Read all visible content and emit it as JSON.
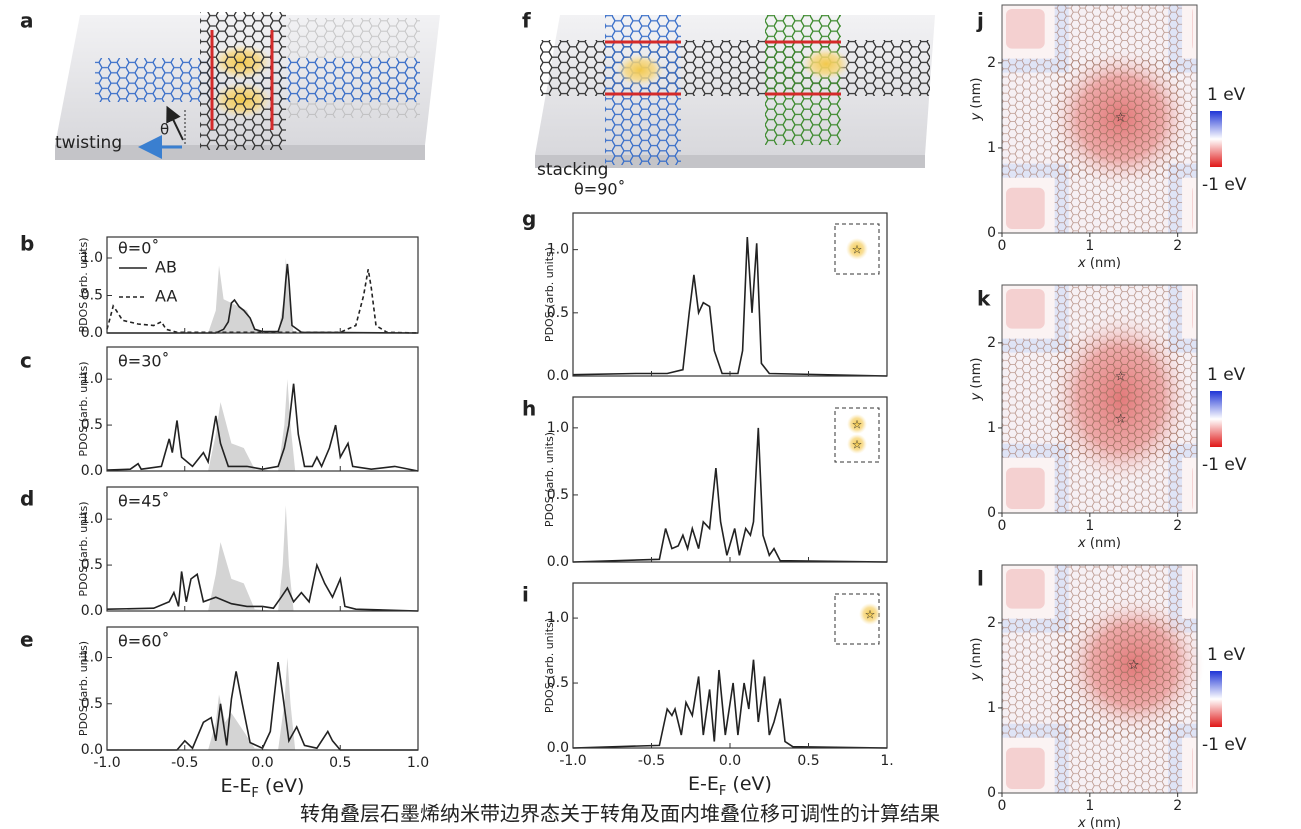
{
  "schematics": {
    "a": {
      "panel": "a",
      "label": "twisting",
      "angle": "θ"
    },
    "f": {
      "panel": "f",
      "label": "stacking"
    }
  },
  "caption": "转角叠层石墨烯纳米带边界态关于转角及面内堆叠位移可调性的计算结果",
  "chart_data": [
    {
      "type": "line",
      "panel": "b",
      "theta": "θ=0˚",
      "ylabel": "PDOS (arb. units)",
      "legend": true,
      "xlim": [
        -1,
        1
      ],
      "ylim": [
        0,
        1.28
      ],
      "xticks": [
        -1,
        -0.5,
        0,
        0.5,
        1
      ],
      "yticks": [
        {
          "value": 0,
          "label": "0.0"
        },
        {
          "value": 0.5,
          "label": "0.5"
        },
        {
          "value": 1,
          "label": "1.0"
        }
      ],
      "series": [
        {
          "color": "#d4d4d4",
          "fill": true,
          "style": "solid",
          "x": [
            -1,
            -0.35,
            -0.3,
            -0.28,
            -0.25,
            -0.2,
            -0.1,
            -0.05,
            0.1,
            0.14,
            0.15,
            0.17,
            0.2,
            1
          ],
          "values": [
            0,
            0,
            0.3,
            0.9,
            0.45,
            0.4,
            0.3,
            0.05,
            0,
            0.5,
            1.0,
            0.5,
            0,
            0
          ]
        },
        {
          "name": "AB",
          "color": "#222222",
          "style": "solid",
          "x": [
            -1,
            -0.3,
            -0.25,
            -0.22,
            -0.2,
            -0.18,
            -0.15,
            -0.12,
            -0.08,
            -0.05,
            0,
            0.1,
            0.13,
            0.15,
            0.16,
            0.17,
            0.19,
            0.25,
            1
          ],
          "values": [
            0,
            0,
            0.05,
            0.15,
            0.4,
            0.44,
            0.35,
            0.3,
            0.2,
            0.05,
            0.02,
            0.02,
            0.2,
            0.7,
            0.92,
            0.7,
            0.1,
            0.01,
            0
          ]
        },
        {
          "name": "AA",
          "color": "#222222",
          "style": "dash",
          "x": [
            -1,
            -0.98,
            -0.96,
            -0.94,
            -0.9,
            -0.8,
            -0.7,
            -0.65,
            -0.62,
            -0.55,
            0.5,
            0.6,
            0.65,
            0.68,
            0.7,
            0.73,
            0.8,
            1
          ],
          "values": [
            0.05,
            0.2,
            0.36,
            0.3,
            0.17,
            0.12,
            0.1,
            0.15,
            0.05,
            0.01,
            0.01,
            0.1,
            0.5,
            0.85,
            0.6,
            0.1,
            0.01,
            0
          ]
        }
      ]
    },
    {
      "type": "line",
      "panel": "c",
      "theta": "θ=30˚",
      "ylabel": "PDOS (arb. units)",
      "xlim": [
        -1,
        1
      ],
      "ylim": [
        0,
        1.35
      ],
      "xticks": [
        -1,
        -0.5,
        0,
        0.5,
        1
      ],
      "yticks": [
        {
          "value": 0,
          "label": "0.0"
        },
        {
          "value": 0.5,
          "label": "0.5"
        },
        {
          "value": 1,
          "label": "1.0"
        }
      ],
      "series": [
        {
          "color": "#d4d4d4",
          "fill": true,
          "style": "solid",
          "x": [
            -1,
            -0.35,
            -0.3,
            -0.27,
            -0.2,
            -0.12,
            -0.05,
            0.1,
            0.14,
            0.16,
            0.18,
            0.21,
            1
          ],
          "values": [
            0,
            0,
            0.4,
            0.75,
            0.3,
            0.25,
            0.02,
            0,
            0.5,
            1.0,
            0.5,
            0,
            0
          ]
        },
        {
          "color": "#222222",
          "style": "solid",
          "x": [
            -1,
            -0.85,
            -0.8,
            -0.78,
            -0.65,
            -0.6,
            -0.58,
            -0.55,
            -0.52,
            -0.45,
            -0.38,
            -0.35,
            -0.3,
            -0.27,
            -0.22,
            -0.1,
            0,
            0.1,
            0.14,
            0.17,
            0.2,
            0.23,
            0.27,
            0.32,
            0.35,
            0.38,
            0.43,
            0.47,
            0.5,
            0.55,
            0.58,
            0.7,
            0.85,
            1
          ],
          "values": [
            0.01,
            0.02,
            0.08,
            0.02,
            0.05,
            0.35,
            0.2,
            0.55,
            0.15,
            0.05,
            0.2,
            0.1,
            0.6,
            0.3,
            0.05,
            0.05,
            0.02,
            0.05,
            0.25,
            0.5,
            0.95,
            0.4,
            0.05,
            0.05,
            0.15,
            0.05,
            0.25,
            0.5,
            0.15,
            0.3,
            0.05,
            0.02,
            0.05,
            0
          ]
        }
      ]
    },
    {
      "type": "line",
      "panel": "d",
      "theta": "θ=45˚",
      "ylabel": "PDOS (arb. units)",
      "xlim": [
        -1,
        1
      ],
      "ylim": [
        0,
        1.35
      ],
      "xticks": [
        -1,
        -0.5,
        0,
        0.5,
        1
      ],
      "yticks": [
        {
          "value": 0,
          "label": "0.0"
        },
        {
          "value": 0.5,
          "label": "0.5"
        },
        {
          "value": 1,
          "label": "1.0"
        }
      ],
      "series": [
        {
          "color": "#d4d4d4",
          "fill": true,
          "style": "solid",
          "x": [
            -1,
            -0.35,
            -0.3,
            -0.27,
            -0.2,
            -0.12,
            -0.05,
            0.1,
            0.13,
            0.15,
            0.17,
            0.2,
            1
          ],
          "values": [
            0,
            0,
            0.4,
            0.75,
            0.35,
            0.3,
            0.02,
            0,
            0.5,
            1.15,
            0.5,
            0,
            0
          ]
        },
        {
          "color": "#222222",
          "style": "solid",
          "x": [
            -1,
            -0.7,
            -0.6,
            -0.57,
            -0.54,
            -0.52,
            -0.49,
            -0.46,
            -0.42,
            -0.38,
            -0.3,
            -0.2,
            -0.1,
            0,
            0.07,
            0.12,
            0.16,
            0.2,
            0.25,
            0.3,
            0.35,
            0.4,
            0.45,
            0.5,
            0.53,
            0.6,
            1
          ],
          "values": [
            0.02,
            0.03,
            0.1,
            0.2,
            0.05,
            0.43,
            0.1,
            0.35,
            0.4,
            0.1,
            0.15,
            0.08,
            0.05,
            0.05,
            0.03,
            0.15,
            0.25,
            0.1,
            0.2,
            0.1,
            0.5,
            0.3,
            0.15,
            0.35,
            0.05,
            0.02,
            0
          ]
        }
      ]
    },
    {
      "type": "line",
      "panel": "e",
      "theta": "θ=60˚",
      "ylabel": "PDOS (arb. units)",
      "xlabel": {
        "main": "E-E",
        "sub": "F",
        "unit": " (eV)"
      },
      "xlim": [
        -1,
        1
      ],
      "ylim": [
        0,
        1.33
      ],
      "xticks": [
        {
          "value": -1,
          "label": "-1.0"
        },
        {
          "value": -0.5,
          "label": "-0.5"
        },
        {
          "value": 0,
          "label": "0.0"
        },
        {
          "value": 0.5,
          "label": "0.5"
        },
        {
          "value": 1,
          "label": "1.0"
        }
      ],
      "yticks": [
        {
          "value": 0,
          "label": "0.0"
        },
        {
          "value": 0.5,
          "label": "0.5"
        },
        {
          "value": 1,
          "label": "1.0"
        }
      ],
      "series": [
        {
          "color": "#d4d4d4",
          "fill": true,
          "style": "solid",
          "x": [
            -1,
            -0.35,
            -0.3,
            -0.28,
            -0.24,
            -0.2,
            -0.12,
            -0.05,
            0.1,
            0.14,
            0.16,
            0.18,
            0.21,
            1
          ],
          "values": [
            0,
            0,
            0.3,
            0.6,
            0.3,
            0.4,
            0.2,
            0.02,
            0,
            0.5,
            1.0,
            0.5,
            0,
            0
          ]
        },
        {
          "color": "#222222",
          "style": "solid",
          "x": [
            -1,
            -0.55,
            -0.5,
            -0.45,
            -0.38,
            -0.33,
            -0.3,
            -0.27,
            -0.23,
            -0.2,
            -0.17,
            -0.13,
            -0.08,
            0,
            0.05,
            0.1,
            0.13,
            0.17,
            0.22,
            0.27,
            0.35,
            0.42,
            0.45,
            0.5,
            1
          ],
          "values": [
            0,
            0,
            0.1,
            0.02,
            0.3,
            0.35,
            0.1,
            0.5,
            0.05,
            0.55,
            0.85,
            0.5,
            0.08,
            0.02,
            0.2,
            0.95,
            0.6,
            0.1,
            0.25,
            0.05,
            0.02,
            0.2,
            0.1,
            0,
            0
          ]
        }
      ]
    },
    {
      "type": "line",
      "panel": "g",
      "theta": "θ=90˚",
      "ylabel": "PDOS (arb. units)",
      "xlim": [
        -1,
        1
      ],
      "ylim": [
        0,
        1.29
      ],
      "xticks": [
        -1,
        -0.5,
        0,
        0.5,
        1
      ],
      "yticks": [
        {
          "value": 0,
          "label": "0.0"
        },
        {
          "value": 0.5,
          "label": "0.5"
        },
        {
          "value": 1,
          "label": "1.0"
        }
      ],
      "series": [
        {
          "color": "#222222",
          "style": "solid",
          "x": [
            -1,
            -0.6,
            -0.4,
            -0.3,
            -0.26,
            -0.23,
            -0.2,
            -0.17,
            -0.13,
            -0.1,
            -0.05,
            0.05,
            0.08,
            0.11,
            0.14,
            0.17,
            0.2,
            0.25,
            1
          ],
          "values": [
            0.01,
            0.02,
            0.02,
            0.05,
            0.5,
            0.8,
            0.5,
            0.58,
            0.55,
            0.2,
            0.02,
            0.02,
            0.2,
            1.1,
            0.5,
            1.05,
            0.1,
            0.02,
            0
          ]
        }
      ]
    },
    {
      "type": "line",
      "panel": "h",
      "ylabel": "PDOS (arb. units)",
      "xlim": [
        -1,
        1
      ],
      "ylim": [
        0,
        1.23
      ],
      "xticks": [
        -1,
        -0.5,
        0,
        0.5,
        1
      ],
      "yticks": [
        {
          "value": 0,
          "label": "0.0"
        },
        {
          "value": 0.5,
          "label": "0.5"
        },
        {
          "value": 1,
          "label": "1.0"
        }
      ],
      "series": [
        {
          "color": "#222222",
          "style": "solid",
          "x": [
            -1,
            -0.45,
            -0.41,
            -0.37,
            -0.33,
            -0.3,
            -0.27,
            -0.24,
            -0.2,
            -0.17,
            -0.13,
            -0.09,
            -0.06,
            -0.02,
            0.03,
            0.06,
            0.1,
            0.13,
            0.15,
            0.18,
            0.21,
            0.25,
            0.28,
            0.32,
            1
          ],
          "values": [
            0,
            0.02,
            0.25,
            0.1,
            0.12,
            0.2,
            0.1,
            0.25,
            0.1,
            0.3,
            0.25,
            0.7,
            0.3,
            0.05,
            0.25,
            0.05,
            0.25,
            0.2,
            0.3,
            1.0,
            0.2,
            0.05,
            0.1,
            0.01,
            0
          ]
        }
      ]
    },
    {
      "type": "line",
      "panel": "i",
      "ylabel": "PDOS (arb. units)",
      "xlabel": {
        "main": "E-E",
        "sub": "F",
        "unit": " (eV)"
      },
      "xlim": [
        -1,
        1
      ],
      "ylim": [
        0,
        1.27
      ],
      "xticks": [
        {
          "value": -1,
          "label": "-1.0"
        },
        {
          "value": -0.5,
          "label": "-0.5"
        },
        {
          "value": 0,
          "label": "0.0"
        },
        {
          "value": 0.5,
          "label": "0.5"
        },
        {
          "value": 1,
          "label": "1."
        }
      ],
      "yticks": [
        {
          "value": 0,
          "label": "0.0"
        },
        {
          "value": 0.5,
          "label": "0.5"
        },
        {
          "value": 1,
          "label": "1.0"
        }
      ],
      "series": [
        {
          "color": "#222222",
          "style": "solid",
          "x": [
            -1,
            -0.45,
            -0.4,
            -0.37,
            -0.35,
            -0.31,
            -0.28,
            -0.24,
            -0.2,
            -0.17,
            -0.13,
            -0.1,
            -0.07,
            -0.03,
            0.02,
            0.05,
            0.09,
            0.12,
            0.15,
            0.18,
            0.22,
            0.25,
            0.28,
            0.32,
            0.35,
            0.4,
            1
          ],
          "values": [
            0,
            0.02,
            0.3,
            0.25,
            0.3,
            0.1,
            0.35,
            0.25,
            0.55,
            0.1,
            0.45,
            0.05,
            0.6,
            0.1,
            0.5,
            0.1,
            0.5,
            0.3,
            0.68,
            0.2,
            0.55,
            0.1,
            0.2,
            0.38,
            0.05,
            0.01,
            0
          ]
        }
      ]
    },
    {
      "type": "map",
      "panel": "j",
      "xlabel": {
        "var": "x",
        "unit": " (nm)"
      },
      "ylabel": {
        "var": "y",
        "unit": " (nm)"
      },
      "xlim": [
        0,
        2.22
      ],
      "ylim": [
        0,
        2.68
      ],
      "xticks": [
        0,
        1,
        2
      ],
      "yticks": [
        0,
        1,
        2
      ],
      "colorbar": [
        "1 eV",
        "-1 eV"
      ]
    },
    {
      "type": "map",
      "panel": "k",
      "xlabel": {
        "var": "x",
        "unit": " (nm)"
      },
      "ylabel": {
        "var": "y",
        "unit": " (nm)"
      },
      "xlim": [
        0,
        2.22
      ],
      "ylim": [
        0,
        2.68
      ],
      "xticks": [
        0,
        1,
        2
      ],
      "yticks": [
        0,
        1,
        2
      ],
      "colorbar": [
        "1 eV",
        "-1 eV"
      ]
    },
    {
      "type": "map",
      "panel": "l",
      "xlabel": {
        "var": "x",
        "unit": " (nm)"
      },
      "ylabel": {
        "var": "y",
        "unit": " (nm)"
      },
      "xlim": [
        0,
        2.22
      ],
      "ylim": [
        0,
        2.68
      ],
      "xticks": [
        0,
        1,
        2
      ],
      "yticks": [
        0,
        1,
        2
      ],
      "colorbar": [
        "1 eV",
        "-1 eV"
      ]
    }
  ]
}
